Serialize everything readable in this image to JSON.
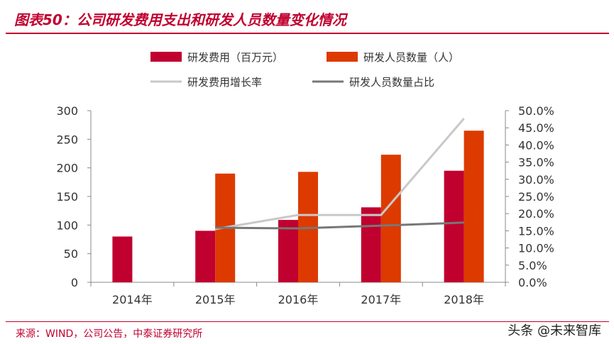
{
  "title": "图表50：公司研发费用支出和研发人员数量变化情况",
  "source": "来源：WIND，公司公告，中泰证券研究所",
  "watermark": "头条 @未来智库",
  "chart_data": {
    "type": "bar",
    "categories": [
      "2014年",
      "2015年",
      "2016年",
      "2017年",
      "2018年"
    ],
    "ylim": [
      0,
      300
    ],
    "yticks": [
      "0",
      "50",
      "100",
      "150",
      "200",
      "250",
      "300"
    ],
    "y2lim": [
      0,
      50
    ],
    "y2ticks": [
      "0.0%",
      "5.0%",
      "10.0%",
      "15.0%",
      "20.0%",
      "25.0%",
      "30.0%",
      "35.0%",
      "40.0%",
      "45.0%",
      "50.0%"
    ],
    "series": [
      {
        "name": "研发费用（百万元）",
        "type": "bar",
        "axis": "left",
        "color": "#c0002f",
        "values": [
          80,
          90,
          109,
          131,
          195
        ]
      },
      {
        "name": "研发人员数量（人）",
        "type": "bar",
        "axis": "left",
        "color": "#dd3a00",
        "values": [
          null,
          190,
          193,
          223,
          265
        ]
      },
      {
        "name": "研发费用增长率",
        "type": "line",
        "axis": "right",
        "color": "#c8c8c8",
        "values": [
          null,
          15.5,
          19.6,
          19.6,
          47.7
        ]
      },
      {
        "name": "研发人员数量占比",
        "type": "line",
        "axis": "right",
        "color": "#777777",
        "values": [
          null,
          15.9,
          15.7,
          16.5,
          17.4
        ]
      }
    ],
    "legend": "top"
  }
}
